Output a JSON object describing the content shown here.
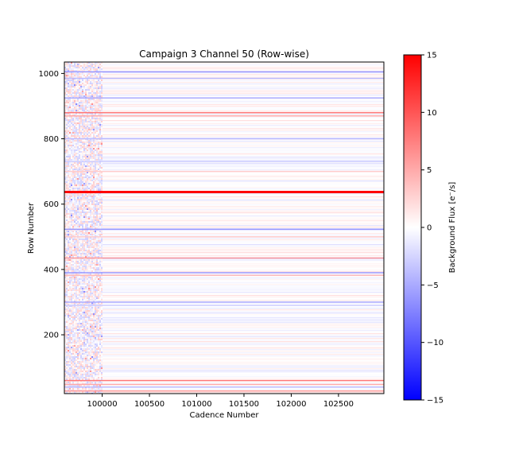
{
  "chart_data": {
    "type": "heatmap",
    "title": "Campaign 3 Channel 50 (Row-wise)",
    "xlabel": "Cadence Number",
    "ylabel": "Row Number",
    "xlim": [
      99600,
      102980
    ],
    "ylim": [
      20,
      1035
    ],
    "x_ticks": [
      {
        "value": 100000,
        "label": "100000"
      },
      {
        "value": 100500,
        "label": "100500"
      },
      {
        "value": 101000,
        "label": "101000"
      },
      {
        "value": 101500,
        "label": "101500"
      },
      {
        "value": 102000,
        "label": "102000"
      },
      {
        "value": 102500,
        "label": "102500"
      }
    ],
    "y_ticks": [
      {
        "value": 200,
        "label": "200"
      },
      {
        "value": 400,
        "label": "400"
      },
      {
        "value": 600,
        "label": "600"
      },
      {
        "value": 800,
        "label": "800"
      },
      {
        "value": 1000,
        "label": "1000"
      }
    ],
    "colorbar": {
      "label": "Background Flux [e⁻/s]",
      "colormap": "bwr",
      "vmin": -15,
      "vmax": 15,
      "low_color": "#0000ff",
      "mid_color": "#ffffff",
      "high_color": "#ff0000",
      "ticks": [
        {
          "value": 15,
          "label": "15"
        },
        {
          "value": 10,
          "label": "10"
        },
        {
          "value": 5,
          "label": "5"
        },
        {
          "value": 0,
          "label": "0"
        },
        {
          "value": -5,
          "label": "−5"
        },
        {
          "value": -10,
          "label": "−10"
        },
        {
          "value": -15,
          "label": "−15"
        }
      ]
    },
    "noisy_region_end_cadence": 100000,
    "row_features": [
      {
        "row": 637,
        "value": 15
      },
      {
        "row": 1005,
        "value": -6
      },
      {
        "row": 985,
        "value": -4
      },
      {
        "row": 925,
        "value": -5
      },
      {
        "row": 880,
        "value": 8
      },
      {
        "row": 870,
        "value": 5
      },
      {
        "row": 800,
        "value": -4
      },
      {
        "row": 730,
        "value": -3
      },
      {
        "row": 700,
        "value": 3
      },
      {
        "row": 523,
        "value": -6
      },
      {
        "row": 500,
        "value": 3
      },
      {
        "row": 435,
        "value": 6
      },
      {
        "row": 390,
        "value": -6
      },
      {
        "row": 382,
        "value": 4
      },
      {
        "row": 300,
        "value": -5
      },
      {
        "row": 290,
        "value": -3
      },
      {
        "row": 60,
        "value": 8
      },
      {
        "row": 48,
        "value": 5
      },
      {
        "row": 40,
        "value": -4
      },
      {
        "row": 28,
        "value": 6
      }
    ]
  }
}
